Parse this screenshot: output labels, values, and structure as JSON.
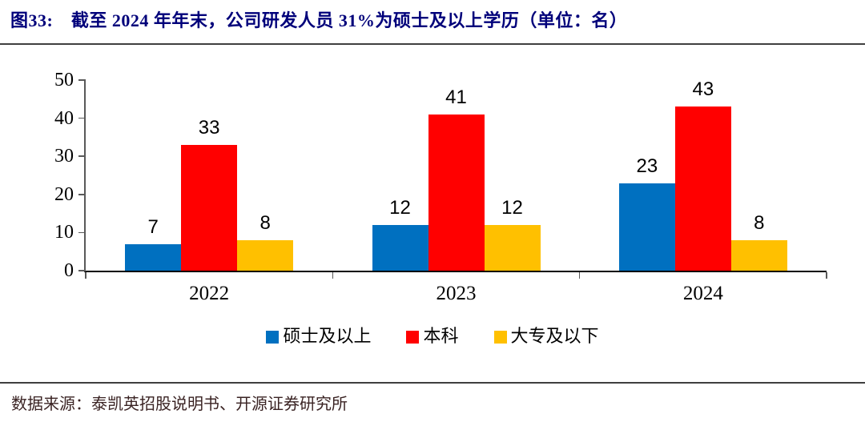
{
  "header": {
    "title": "图33:　截至 2024 年年末，公司研发人员 31%为硕士及以上学历（单位：名）"
  },
  "footer": {
    "source": "数据来源：泰凯英招股说明书、开源证券研究所"
  },
  "chart_data": {
    "type": "bar",
    "title": "截至 2024 年年末，公司研发人员 31%为硕士及以上学历（单位：名）",
    "categories": [
      "2022",
      "2023",
      "2024"
    ],
    "series": [
      {
        "name": "硕士及以上",
        "color": "#0070C0",
        "values": [
          7,
          12,
          23
        ]
      },
      {
        "name": "本科",
        "color": "#FF0000",
        "values": [
          33,
          41,
          43
        ]
      },
      {
        "name": "大专及以下",
        "color": "#FFC000",
        "values": [
          8,
          12,
          8
        ]
      }
    ],
    "xlabel": "",
    "ylabel": "",
    "ylim": [
      0,
      50
    ],
    "yticks": [
      0,
      10,
      20,
      30,
      40,
      50
    ],
    "grid": false,
    "legend_position": "bottom",
    "axis_color": "#595959",
    "baseline_color": "#000000"
  }
}
